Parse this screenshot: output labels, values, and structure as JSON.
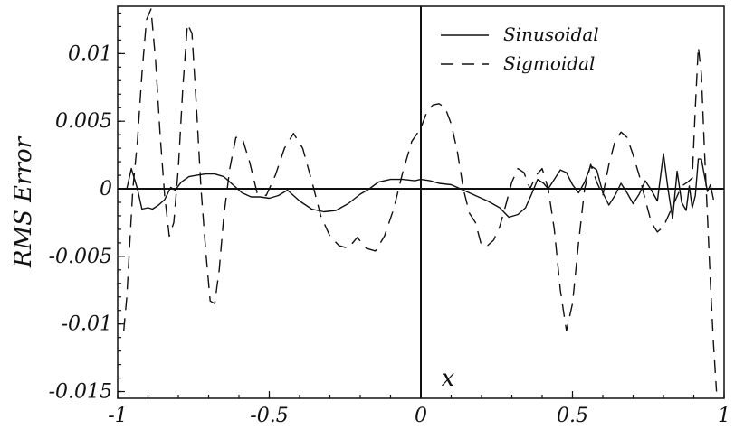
{
  "chart_data": {
    "type": "line",
    "title": "",
    "xlabel": "x",
    "ylabel": "RMS Error",
    "xlim": [
      -1,
      1
    ],
    "ylim": [
      -0.0155,
      0.0135
    ],
    "grid": false,
    "legend_position": "top-right",
    "x_ticks": [
      -1,
      -0.5,
      0,
      0.5,
      1
    ],
    "x_tick_labels": [
      "-1",
      "-0.5",
      "0",
      "0.5",
      "1"
    ],
    "y_ticks": [
      0.01,
      0.005,
      0,
      -0.005,
      -0.01,
      -0.015
    ],
    "y_tick_labels": [
      "0.01",
      "0.005",
      "0",
      "-0.005",
      "-0.01",
      "-0.015"
    ],
    "series": [
      {
        "name": "Sinusoidal",
        "style": "solid",
        "x": [
          -0.97,
          -0.955,
          -0.935,
          -0.92,
          -0.9,
          -0.885,
          -0.865,
          -0.845,
          -0.825,
          -0.81,
          -0.79,
          -0.765,
          -0.74,
          -0.71,
          -0.68,
          -0.65,
          -0.62,
          -0.59,
          -0.56,
          -0.53,
          -0.5,
          -0.47,
          -0.44,
          -0.4,
          -0.36,
          -0.32,
          -0.28,
          -0.24,
          -0.2,
          -0.17,
          -0.14,
          -0.1,
          -0.06,
          -0.02,
          0.0,
          0.03,
          0.06,
          0.1,
          0.14,
          0.18,
          0.22,
          0.26,
          0.29,
          0.32,
          0.345,
          0.365,
          0.385,
          0.405,
          0.42,
          0.44,
          0.46,
          0.48,
          0.5,
          0.52,
          0.54,
          0.56,
          0.58,
          0.6,
          0.62,
          0.64,
          0.66,
          0.68,
          0.7,
          0.72,
          0.74,
          0.76,
          0.78,
          0.8,
          0.815,
          0.83,
          0.845,
          0.86,
          0.875,
          0.885,
          0.895,
          0.905,
          0.915,
          0.925,
          0.935,
          0.945,
          0.955,
          0.965
        ],
        "y": [
          0.0,
          0.0015,
          0.0,
          -0.0015,
          -0.0014,
          -0.0015,
          -0.0012,
          -0.0008,
          0.0001,
          -0.0001,
          0.0005,
          0.0009,
          0.001,
          0.0011,
          0.0011,
          0.0009,
          0.0003,
          -0.0003,
          -0.0006,
          -0.0006,
          -0.0007,
          -0.0005,
          -0.0001,
          -0.0009,
          -0.0015,
          -0.0017,
          -0.0016,
          -0.0011,
          -0.0004,
          0.0,
          0.0005,
          0.0007,
          0.0007,
          0.0006,
          0.0007,
          0.0006,
          0.0004,
          0.0003,
          -0.0001,
          -0.0005,
          -0.0009,
          -0.0014,
          -0.0021,
          -0.0019,
          -0.0014,
          -0.0004,
          0.0007,
          0.0004,
          0.0,
          0.0007,
          0.0014,
          0.0012,
          0.0003,
          -0.0003,
          0.0005,
          0.0017,
          0.0014,
          -0.0003,
          -0.0012,
          -0.0005,
          0.0004,
          -0.0003,
          -0.0011,
          -0.0004,
          0.0006,
          -0.0001,
          -0.0009,
          0.0026,
          0.0,
          -0.0022,
          0.0013,
          -0.001,
          -0.0016,
          0.0002,
          -0.0014,
          -0.0005,
          0.0022,
          0.0022,
          0.001,
          -0.0002,
          0.0003,
          -0.0008
        ]
      },
      {
        "name": "Sigmoidal",
        "style": "dashed",
        "x": [
          -0.98,
          -0.97,
          -0.96,
          -0.95,
          -0.935,
          -0.92,
          -0.905,
          -0.89,
          -0.875,
          -0.86,
          -0.845,
          -0.83,
          -0.815,
          -0.8,
          -0.785,
          -0.77,
          -0.755,
          -0.74,
          -0.725,
          -0.71,
          -0.695,
          -0.68,
          -0.665,
          -0.65,
          -0.63,
          -0.61,
          -0.59,
          -0.565,
          -0.54,
          -0.51,
          -0.48,
          -0.45,
          -0.42,
          -0.39,
          -0.36,
          -0.33,
          -0.3,
          -0.27,
          -0.24,
          -0.21,
          -0.18,
          -0.15,
          -0.12,
          -0.09,
          -0.06,
          -0.03,
          0.0,
          0.02,
          0.04,
          0.06,
          0.08,
          0.1,
          0.12,
          0.14,
          0.16,
          0.18,
          0.2,
          0.22,
          0.24,
          0.26,
          0.28,
          0.3,
          0.32,
          0.34,
          0.36,
          0.38,
          0.4,
          0.42,
          0.44,
          0.46,
          0.48,
          0.5,
          0.52,
          0.54,
          0.56,
          0.58,
          0.6,
          0.62,
          0.64,
          0.66,
          0.68,
          0.7,
          0.72,
          0.74,
          0.76,
          0.78,
          0.8,
          0.82,
          0.84,
          0.86,
          0.88,
          0.895,
          0.905,
          0.915,
          0.925,
          0.935,
          0.945,
          0.955,
          0.965,
          0.975
        ],
        "y": [
          -0.0105,
          -0.008,
          -0.004,
          0.0,
          0.0035,
          0.0085,
          0.0125,
          0.0133,
          0.0095,
          0.004,
          -0.0005,
          -0.0035,
          -0.0025,
          0.0015,
          0.0075,
          0.0122,
          0.0115,
          0.006,
          0.0,
          -0.0045,
          -0.0083,
          -0.0085,
          -0.006,
          -0.002,
          0.0015,
          0.0038,
          0.0038,
          0.002,
          -0.0003,
          -0.0005,
          0.001,
          0.003,
          0.0041,
          0.003,
          0.0006,
          -0.002,
          -0.0035,
          -0.0042,
          -0.0044,
          -0.0036,
          -0.0044,
          -0.0046,
          -0.0035,
          -0.0015,
          0.0012,
          0.0035,
          0.0045,
          0.0057,
          0.0062,
          0.0063,
          0.006,
          0.0048,
          0.0028,
          0.0,
          -0.0018,
          -0.0025,
          -0.0042,
          -0.0042,
          -0.0038,
          -0.0028,
          -0.0012,
          0.0005,
          0.0015,
          0.0012,
          0.0,
          0.001,
          0.0015,
          0.0,
          -0.003,
          -0.0075,
          -0.0105,
          -0.0085,
          -0.004,
          0.0,
          0.0018,
          0.0005,
          -0.0005,
          0.0018,
          0.0035,
          0.0042,
          0.0038,
          0.0025,
          0.001,
          -0.0008,
          -0.0025,
          -0.0032,
          -0.0028,
          -0.0018,
          -0.0008,
          0.0002,
          0.0005,
          0.0008,
          0.006,
          0.0105,
          0.0085,
          0.003,
          -0.002,
          -0.007,
          -0.0115,
          -0.015
        ]
      }
    ]
  }
}
